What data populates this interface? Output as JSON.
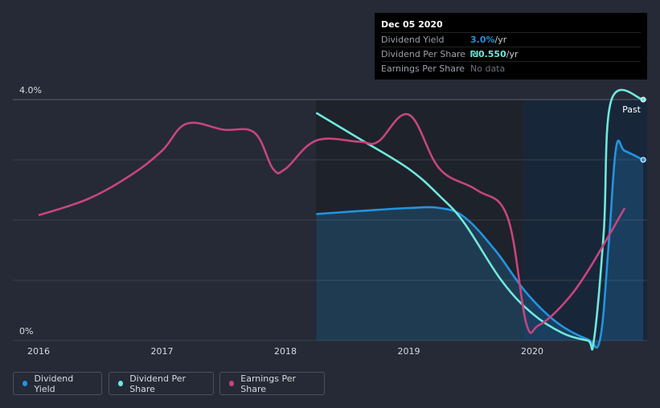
{
  "chart_data": {
    "type": "line",
    "x_ticks": [
      "2016",
      "2017",
      "2018",
      "2019",
      "2020"
    ],
    "y_ticks": [
      "4.0%",
      "0%"
    ],
    "past_label": "Past",
    "ylim": [
      0,
      4.0
    ],
    "grid": true,
    "legend_position": "bottom-left",
    "series": [
      {
        "name": "Dividend Yield",
        "color": "#2394df",
        "area": true,
        "points": [
          [
            2018.25,
            2.1
          ],
          [
            2018.6,
            2.15
          ],
          [
            2019.0,
            2.2
          ],
          [
            2019.25,
            2.2
          ],
          [
            2019.45,
            2.05
          ],
          [
            2019.7,
            1.5
          ],
          [
            2019.95,
            0.8
          ],
          [
            2020.2,
            0.3
          ],
          [
            2020.45,
            0.02
          ],
          [
            2020.55,
            0.02
          ],
          [
            2020.62,
            1.6
          ],
          [
            2020.68,
            3.2
          ],
          [
            2020.75,
            3.15
          ],
          [
            2020.9,
            3.0
          ]
        ]
      },
      {
        "name": "Dividend Per Share",
        "color": "#6fe8dc",
        "points": [
          [
            2018.25,
            3.78
          ],
          [
            2018.6,
            3.35
          ],
          [
            2019.0,
            2.85
          ],
          [
            2019.25,
            2.4
          ],
          [
            2019.45,
            1.95
          ],
          [
            2019.75,
            1.0
          ],
          [
            2020.0,
            0.45
          ],
          [
            2020.25,
            0.12
          ],
          [
            2020.45,
            0.0
          ],
          [
            2020.5,
            0.0
          ],
          [
            2020.58,
            1.8
          ],
          [
            2020.64,
            3.98
          ],
          [
            2020.9,
            4.0
          ]
        ]
      },
      {
        "name": "Earnings Per Share",
        "color": "#c6457e",
        "points": [
          [
            2016.0,
            2.08
          ],
          [
            2016.4,
            2.35
          ],
          [
            2016.75,
            2.75
          ],
          [
            2017.0,
            3.15
          ],
          [
            2017.2,
            3.6
          ],
          [
            2017.5,
            3.5
          ],
          [
            2017.75,
            3.45
          ],
          [
            2017.9,
            2.85
          ],
          [
            2018.0,
            2.85
          ],
          [
            2018.25,
            3.32
          ],
          [
            2018.6,
            3.3
          ],
          [
            2018.75,
            3.3
          ],
          [
            2019.0,
            3.75
          ],
          [
            2019.25,
            2.85
          ],
          [
            2019.55,
            2.5
          ],
          [
            2019.8,
            2.05
          ],
          [
            2019.95,
            0.3
          ],
          [
            2020.05,
            0.25
          ],
          [
            2020.25,
            0.6
          ],
          [
            2020.45,
            1.15
          ],
          [
            2020.75,
            2.2
          ]
        ]
      }
    ]
  },
  "tooltip": {
    "date": "Dec 05 2020",
    "rows": [
      {
        "label": "Dividend Yield",
        "value": "3.0%",
        "unit": " /yr"
      },
      {
        "label": "Dividend Per Share",
        "value": "₪0.550",
        "unit": " /yr"
      },
      {
        "label": "Earnings Per Share",
        "value": "No data"
      }
    ]
  },
  "legend": [
    {
      "label": "Dividend Yield",
      "color": "#2394df"
    },
    {
      "label": "Dividend Per Share",
      "color": "#6fe8dc"
    },
    {
      "label": "Earnings Per Share",
      "color": "#c6457e"
    }
  ]
}
